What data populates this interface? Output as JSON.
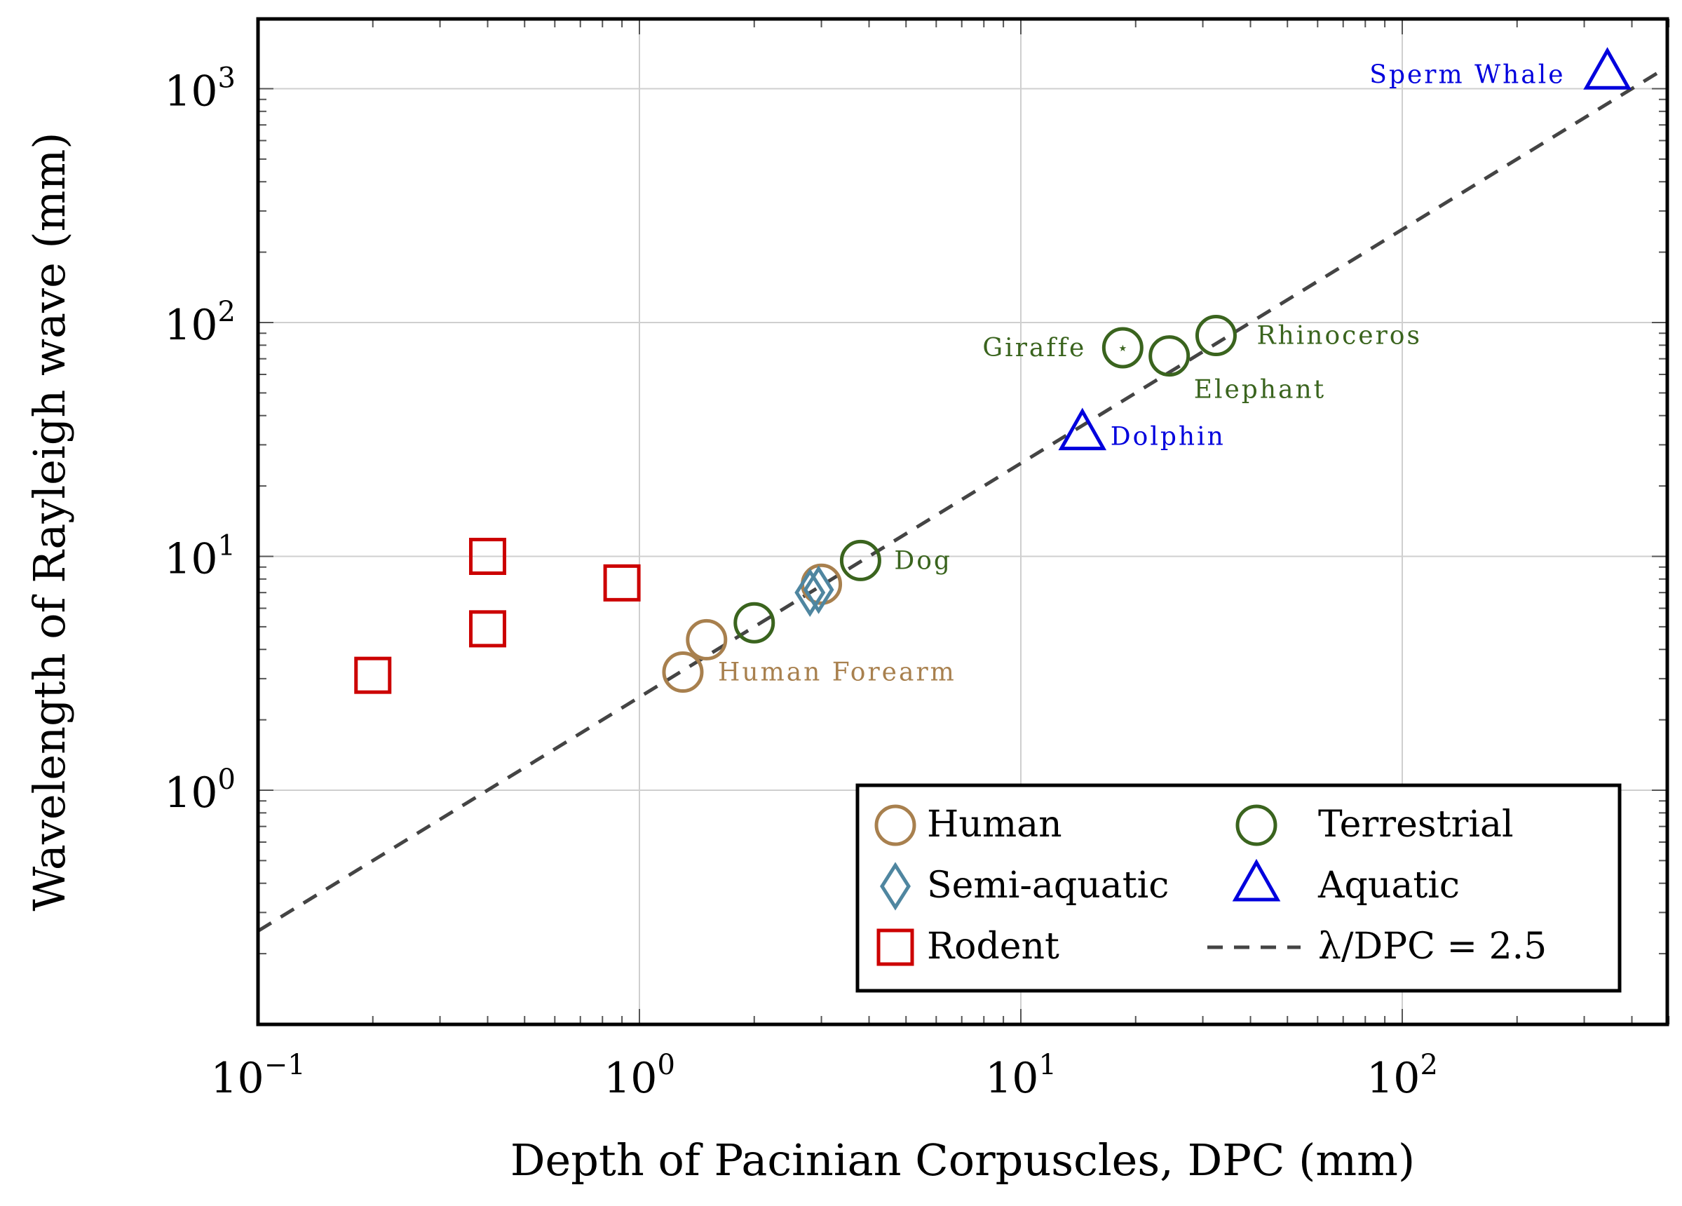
{
  "chart_data": {
    "type": "scatter",
    "title": "",
    "xlabel": "Depth of Pacinian Corpuscles, DPC (mm)",
    "ylabel": "Wavelength of Rayleigh wave (mm)",
    "xscale": "log",
    "yscale": "log",
    "xlim": [
      0.1,
      700
    ],
    "ylim": [
      0.1,
      2000
    ],
    "xticks": [
      {
        "value": 0.1,
        "base": "10",
        "exp": "−1"
      },
      {
        "value": 1,
        "base": "10",
        "exp": "0"
      },
      {
        "value": 10,
        "base": "10",
        "exp": "1"
      },
      {
        "value": 100,
        "base": "10",
        "exp": "2"
      }
    ],
    "yticks": [
      {
        "value": 1,
        "base": "10",
        "exp": "0"
      },
      {
        "value": 10,
        "base": "10",
        "exp": "1"
      },
      {
        "value": 100,
        "base": "10",
        "exp": "2"
      },
      {
        "value": 1000,
        "base": "10",
        "exp": "3"
      }
    ],
    "grid": true,
    "legend_position": "bottom-right",
    "colors": {
      "human": "#a8804e",
      "semi_aquatic": "#4f86a0",
      "rodent": "#cc0000",
      "terrestrial": "#3a641e",
      "aquatic": "#0000dd",
      "fit": "#444444"
    },
    "series": [
      {
        "name": "Human",
        "marker": "circle",
        "color_key": "human",
        "points": [
          {
            "x": 1.3,
            "y": 3.2,
            "label": "Human Forearm"
          },
          {
            "x": 1.5,
            "y": 4.4
          },
          {
            "x": 3.0,
            "y": 7.6
          }
        ]
      },
      {
        "name": "Semi-aquatic",
        "marker": "diamond",
        "color_key": "semi_aquatic",
        "points": [
          {
            "x": 2.8,
            "y": 7.0
          },
          {
            "x": 2.95,
            "y": 7.2
          }
        ]
      },
      {
        "name": "Rodent",
        "marker": "square",
        "color_key": "rodent",
        "points": [
          {
            "x": 0.2,
            "y": 3.1
          },
          {
            "x": 0.4,
            "y": 10
          },
          {
            "x": 0.4,
            "y": 4.9
          },
          {
            "x": 0.9,
            "y": 7.7
          }
        ]
      },
      {
        "name": "Terrestrial",
        "marker": "circle",
        "color_key": "terrestrial",
        "points": [
          {
            "x": 2.0,
            "y": 5.2
          },
          {
            "x": 3.8,
            "y": 9.6,
            "label": "Dog"
          },
          {
            "x": 18.5,
            "y": 78,
            "label": "Giraffe",
            "star": true
          },
          {
            "x": 24.5,
            "y": 72,
            "label": "Elephant"
          },
          {
            "x": 32.5,
            "y": 88,
            "label": "Rhinoceros"
          }
        ]
      },
      {
        "name": "Aquatic",
        "marker": "triangle",
        "color_key": "aquatic",
        "points": [
          {
            "x": 14.5,
            "y": 33,
            "label": "Dolphin"
          },
          {
            "x": 345,
            "y": 1150,
            "label": "Sperm Whale"
          }
        ]
      }
    ],
    "fit_line": {
      "name": "λ/DPC = 2.5",
      "slope": 2.5
    }
  },
  "legend": {
    "human": "Human",
    "semi_aquatic": "Semi-aquatic",
    "rodent": "Rodent",
    "terrestrial": "Terrestrial",
    "aquatic": "Aquatic",
    "fit": "λ/DPC = 2.5"
  }
}
